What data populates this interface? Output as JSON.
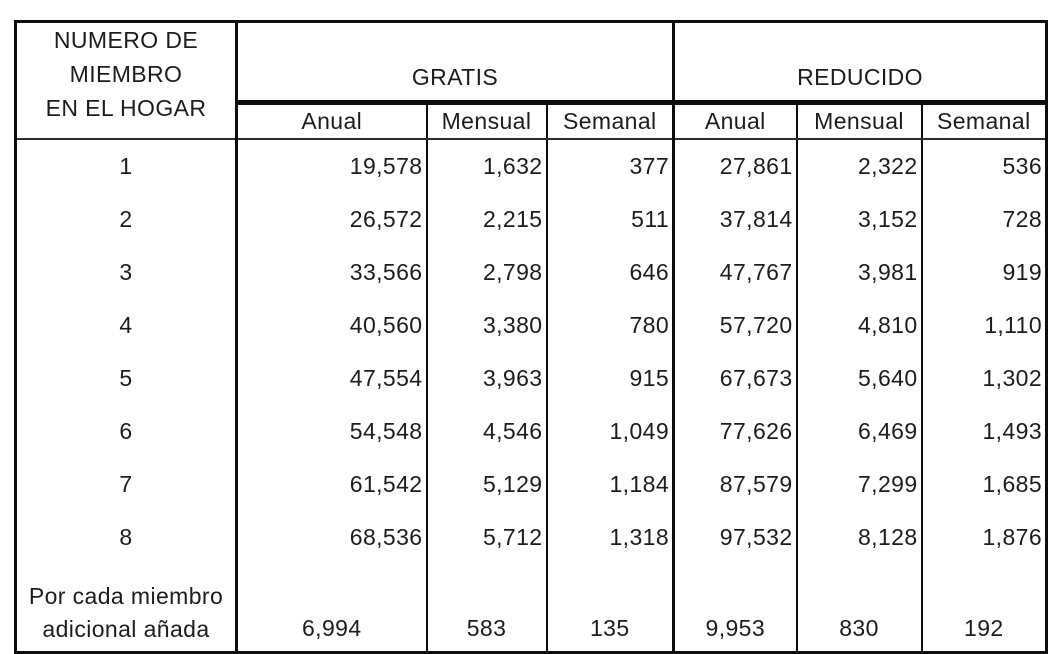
{
  "table": {
    "row_header": {
      "lines": [
        "NUMERO DE",
        "MIEMBRO",
        "EN EL HOGAR"
      ]
    },
    "groups": {
      "free": "GRATIS",
      "reduced": "REDUCIDO"
    },
    "period_headers": [
      "Anual",
      "Mensual",
      "Semanal",
      "Anual",
      "Mensual",
      "Semanal"
    ],
    "rows": [
      {
        "members": "1",
        "values": [
          "19,578",
          "1,632",
          "377",
          "27,861",
          "2,322",
          "536"
        ]
      },
      {
        "members": "2",
        "values": [
          "26,572",
          "2,215",
          "511",
          "37,814",
          "3,152",
          "728"
        ]
      },
      {
        "members": "3",
        "values": [
          "33,566",
          "2,798",
          "646",
          "47,767",
          "3,981",
          "919"
        ]
      },
      {
        "members": "4",
        "values": [
          "40,560",
          "3,380",
          "780",
          "57,720",
          "4,810",
          "1,110"
        ]
      },
      {
        "members": "5",
        "values": [
          "47,554",
          "3,963",
          "915",
          "67,673",
          "5,640",
          "1,302"
        ]
      },
      {
        "members": "6",
        "values": [
          "54,548",
          "4,546",
          "1,049",
          "77,626",
          "6,469",
          "1,493"
        ]
      },
      {
        "members": "7",
        "values": [
          "61,542",
          "5,129",
          "1,184",
          "87,579",
          "7,299",
          "1,685"
        ]
      },
      {
        "members": "8",
        "values": [
          "68,536",
          "5,712",
          "1,318",
          "97,532",
          "8,128",
          "1,876"
        ]
      }
    ],
    "additional_member_row": {
      "label_lines": [
        "Por cada miembro",
        "adicional añada"
      ],
      "values": [
        "6,994",
        "583",
        "135",
        "9,953",
        "830",
        "192"
      ]
    }
  },
  "colors": {
    "background": "#ffffff",
    "text": "#1c1c1c",
    "border": "#0d0d0d"
  }
}
